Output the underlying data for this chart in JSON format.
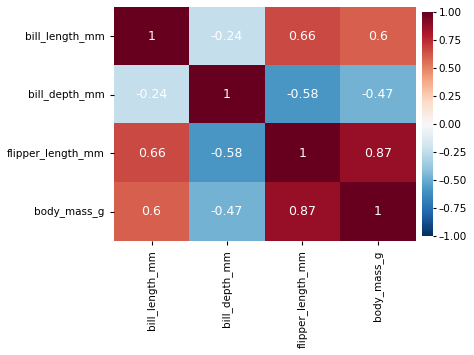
{
  "labels": [
    "bill_length_mm",
    "bill_depth_mm",
    "flipper_length_mm",
    "body_mass_g"
  ],
  "matrix": [
    [
      1.0,
      -0.24,
      0.66,
      0.6
    ],
    [
      -0.24,
      1.0,
      -0.58,
      -0.47
    ],
    [
      0.66,
      -0.58,
      1.0,
      0.87
    ],
    [
      0.6,
      -0.47,
      0.87,
      1.0
    ]
  ],
  "vmin": -1.0,
  "vmax": 1.0,
  "cmap": "RdBu_r",
  "colorbar_ticks": [
    1.0,
    0.75,
    0.5,
    0.25,
    0.0,
    -0.25,
    -0.5,
    -0.75,
    -1.0
  ],
  "colorbar_labels": [
    "1.00",
    "0.75",
    "0.50",
    "0.25",
    "0.00",
    "–0.25",
    "–0.50",
    "–0.75",
    "–1.00"
  ],
  "annot_fontsize": 9,
  "tick_fontsize": 7.5,
  "colorbar_fontsize": 7.5,
  "annot_color": "#f0e0e0",
  "background_color": "#ffffff"
}
